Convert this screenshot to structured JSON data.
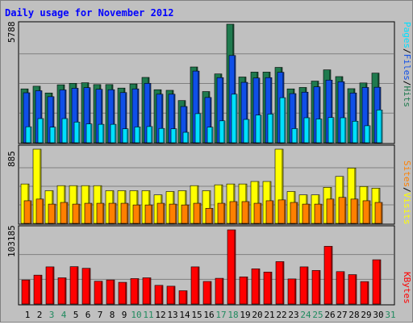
{
  "chart_data": [
    {
      "type": "bar",
      "title": "Daily usage for November 2012",
      "categories": [
        "1",
        "2",
        "3",
        "4",
        "5",
        "6",
        "7",
        "8",
        "9",
        "10",
        "11",
        "12",
        "13",
        "14",
        "15",
        "16",
        "17",
        "18",
        "19",
        "20",
        "21",
        "22",
        "23",
        "24",
        "25",
        "26",
        "27",
        "28",
        "29",
        "30",
        "31"
      ],
      "weekend_days": [
        "3",
        "4",
        "10",
        "11",
        "17",
        "18",
        "24",
        "25",
        "31"
      ],
      "ymax_label": "5788",
      "axis_label_parts": [
        "Pages",
        "/",
        "Files",
        "/",
        "Hits"
      ],
      "series": [
        {
          "name": "Hits",
          "color": "#1f7a4e",
          "values": [
            2630,
            2760,
            2430,
            2830,
            2900,
            2930,
            2840,
            2840,
            2670,
            2870,
            3190,
            2590,
            2560,
            2060,
            3700,
            2500,
            3360,
            5788,
            3210,
            3450,
            3450,
            3680,
            2630,
            2700,
            3010,
            3560,
            3230,
            2640,
            2920,
            3400,
            null
          ]
        },
        {
          "name": "Files",
          "color": "#0f4fe8",
          "values": [
            2440,
            2540,
            2250,
            2580,
            2660,
            2690,
            2610,
            2590,
            2450,
            2630,
            2900,
            2370,
            2370,
            1770,
            3500,
            2210,
            3180,
            4260,
            2950,
            3160,
            3180,
            3440,
            2400,
            2470,
            2730,
            3060,
            2980,
            2430,
            2700,
            2710,
            null
          ]
        },
        {
          "name": "Pages",
          "color": "#00e0ff",
          "values": [
            780,
            1180,
            760,
            1180,
            1010,
            920,
            900,
            900,
            680,
            770,
            790,
            700,
            680,
            510,
            1420,
            760,
            1070,
            2370,
            1140,
            1350,
            1400,
            2200,
            690,
            1220,
            1160,
            1230,
            1220,
            1050,
            830,
            1600,
            null
          ]
        }
      ]
    },
    {
      "type": "bar",
      "categories": [
        "1",
        "2",
        "3",
        "4",
        "5",
        "6",
        "7",
        "8",
        "9",
        "10",
        "11",
        "12",
        "13",
        "14",
        "15",
        "16",
        "17",
        "18",
        "19",
        "20",
        "21",
        "22",
        "23",
        "24",
        "25",
        "26",
        "27",
        "28",
        "29",
        "30",
        "31"
      ],
      "ymax_label": "885",
      "axis_label_parts": [
        "Sites",
        "/",
        "Visits"
      ],
      "series": [
        {
          "name": "Visits",
          "color": "#ffff00",
          "values": [
            470,
            885,
            390,
            450,
            450,
            450,
            450,
            390,
            390,
            390,
            390,
            340,
            380,
            390,
            450,
            390,
            460,
            470,
            470,
            500,
            500,
            885,
            380,
            340,
            340,
            430,
            560,
            660,
            440,
            420,
            null
          ]
        },
        {
          "name": "Sites",
          "color": "#ff8000",
          "values": [
            270,
            290,
            230,
            250,
            230,
            240,
            240,
            240,
            240,
            220,
            220,
            240,
            230,
            220,
            240,
            180,
            240,
            260,
            260,
            240,
            270,
            280,
            250,
            230,
            230,
            290,
            310,
            290,
            270,
            250,
            null
          ]
        }
      ]
    },
    {
      "type": "bar",
      "categories": [
        "1",
        "2",
        "3",
        "4",
        "5",
        "6",
        "7",
        "8",
        "9",
        "10",
        "11",
        "12",
        "13",
        "14",
        "15",
        "16",
        "17",
        "18",
        "19",
        "20",
        "21",
        "22",
        "23",
        "24",
        "25",
        "26",
        "27",
        "28",
        "29",
        "30",
        "31"
      ],
      "ymax_label": "103185",
      "axis_label_parts": [
        "KBytes"
      ],
      "series": [
        {
          "name": "KBytes",
          "color": "#ff0000",
          "values": [
            33500,
            40200,
            51700,
            36500,
            52000,
            49700,
            31700,
            33500,
            30200,
            35400,
            36500,
            26000,
            24800,
            18500,
            51700,
            31400,
            35800,
            103185,
            37800,
            49000,
            44500,
            59000,
            34900,
            51700,
            46700,
            80300,
            45100,
            40900,
            31200,
            61600,
            null
          ]
        }
      ]
    }
  ]
}
